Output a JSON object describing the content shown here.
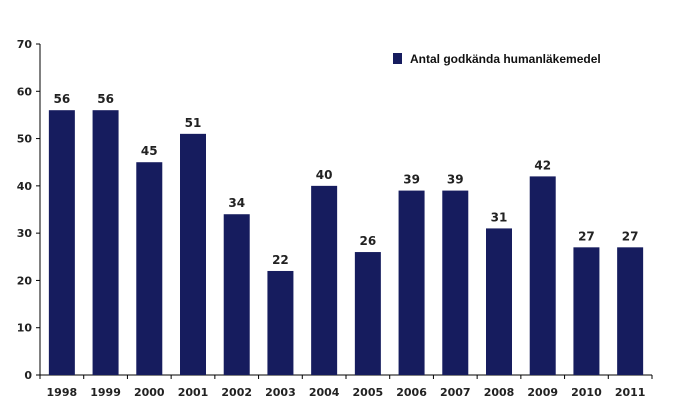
{
  "chart_data": {
    "type": "bar",
    "categories": [
      "1998",
      "1999",
      "2000",
      "2001",
      "2002",
      "2003",
      "2004",
      "2005",
      "2006",
      "2007",
      "2008",
      "2009",
      "2010",
      "2011"
    ],
    "series": [
      {
        "name": "Antal godkända humanläkemedel",
        "values": [
          56,
          56,
          45,
          51,
          34,
          22,
          40,
          26,
          39,
          39,
          31,
          42,
          27,
          27
        ]
      }
    ],
    "title": "",
    "xlabel": "",
    "ylabel": "",
    "ylim": [
      0,
      70
    ],
    "yticks": [
      0,
      10,
      20,
      30,
      40,
      50,
      60,
      70
    ],
    "grid": false,
    "legend_position": "top-right",
    "bar_color": "#161c5e",
    "data_labels": true
  }
}
